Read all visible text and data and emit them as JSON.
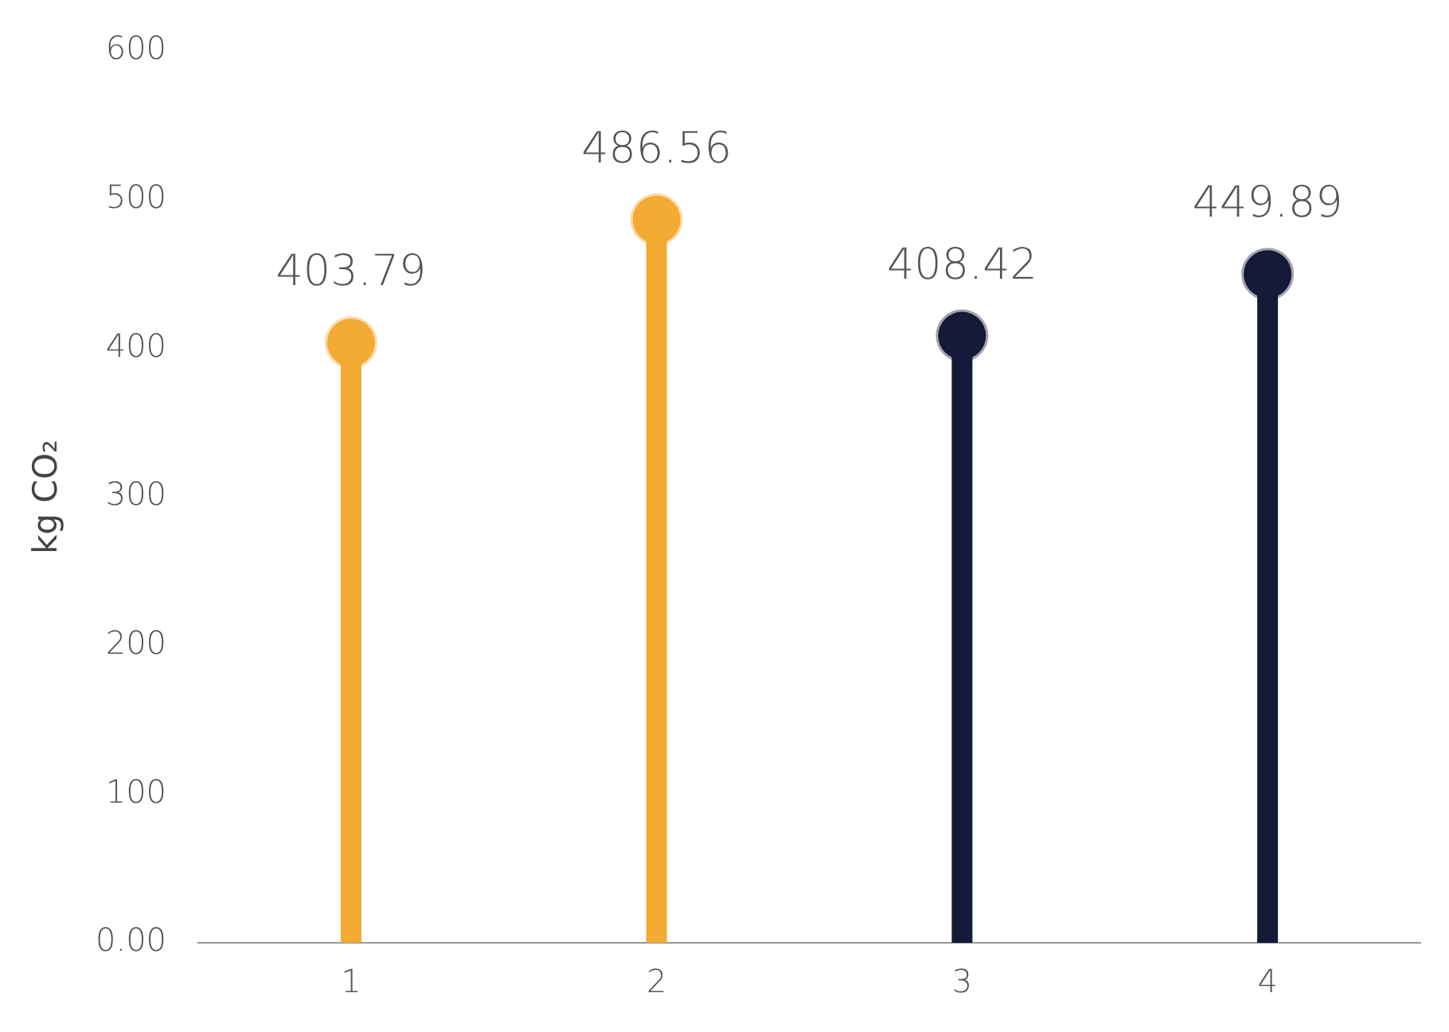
{
  "chart_data": {
    "type": "lollipop",
    "ylabel": "kg CO₂",
    "categories": [
      "1",
      "2",
      "3",
      "4"
    ],
    "values": [
      403.79,
      486.56,
      408.42,
      449.89
    ],
    "colors": [
      "#f2ab33",
      "#f2ab33",
      "#141a38",
      "#141a38"
    ],
    "ylim": [
      0,
      600
    ],
    "yticks": [
      {
        "value": 0,
        "label": "0.00"
      },
      100,
      200,
      300,
      400,
      500,
      600
    ],
    "grid": false,
    "legend": false,
    "data_labels": true
  }
}
